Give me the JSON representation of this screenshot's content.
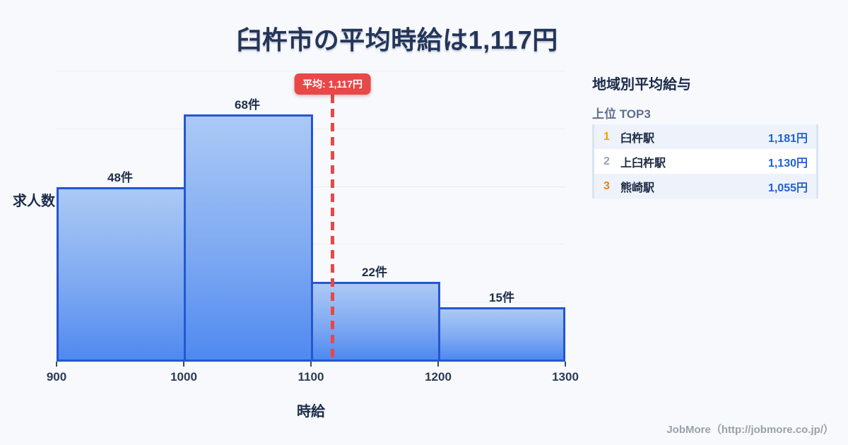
{
  "title": "臼杵市の平均時給は1,117円",
  "chart_data": {
    "type": "bar",
    "title": "臼杵市の平均時給は1,117円",
    "categories": [
      "900-1000",
      "1000-1100",
      "1100-1200",
      "1200-1300"
    ],
    "values": [
      48,
      68,
      22,
      15
    ],
    "bar_labels": [
      "48件",
      "68件",
      "22件",
      "15件"
    ],
    "x_ticks": [
      "900",
      "1000",
      "1100",
      "1200",
      "1300"
    ],
    "x_range": [
      900,
      1300
    ],
    "xlabel": "時給",
    "ylabel": "求人数",
    "ylim": [
      0,
      78
    ],
    "grid": true,
    "average": 1117,
    "average_label": "平均: 1,117円",
    "colors": {
      "bar_fill_top": "#abc9f5",
      "bar_fill_bottom": "#4f89f0",
      "bar_border": "#2457cf",
      "average_line": "#e84848",
      "gridline": "#e9edf3"
    }
  },
  "sidebar": {
    "heading": "地域別平均給与",
    "subheading": "上位 TOP3",
    "rows": [
      {
        "rank": "1",
        "name": "臼杵駅",
        "value": "1,181円",
        "rank_color": "#e7a613"
      },
      {
        "rank": "2",
        "name": "上臼杵駅",
        "value": "1,130円",
        "rank_color": "#97a3b6"
      },
      {
        "rank": "3",
        "name": "熊崎駅",
        "value": "1,055円",
        "rank_color": "#e8821e"
      }
    ]
  },
  "footer": {
    "credit": "JobMore（http://jobmore.co.jp/）"
  }
}
